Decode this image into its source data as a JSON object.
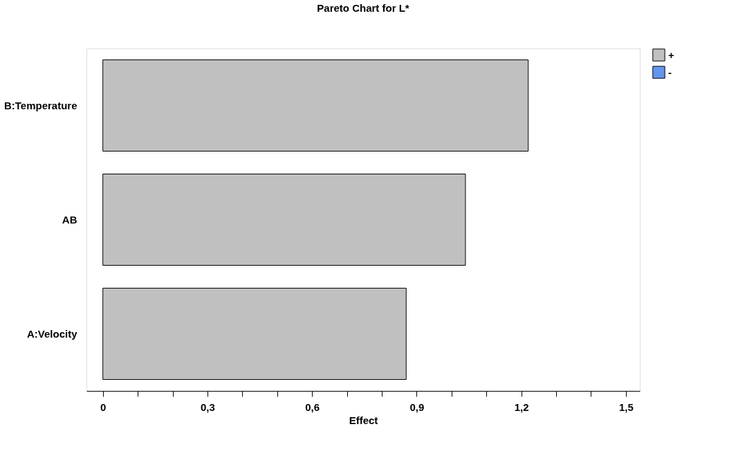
{
  "chart_data": {
    "type": "bar",
    "orientation": "horizontal",
    "title": "Pareto Chart for L*",
    "xlabel": "Effect",
    "categories": [
      "B:Temperature",
      "AB",
      "A:Velocity"
    ],
    "series": [
      {
        "name": "+",
        "color": "#c0c0c0",
        "values": [
          1.22,
          1.04,
          0.87
        ]
      },
      {
        "name": "-",
        "color": "#6495ed",
        "values": [
          null,
          null,
          null
        ]
      }
    ],
    "xlim": [
      -0.047,
      1.54
    ],
    "xticks": [
      0,
      {
        "value": 0.1,
        "label": null
      },
      {
        "value": 0.2,
        "label": null
      },
      {
        "value": 0.3,
        "label": "0,3"
      },
      {
        "value": 0.4,
        "label": null
      },
      {
        "value": 0.5,
        "label": null
      },
      {
        "value": 0.6,
        "label": "0,6"
      },
      {
        "value": 0.7,
        "label": null
      },
      {
        "value": 0.8,
        "label": null
      },
      {
        "value": 0.9,
        "label": "0,9"
      },
      {
        "value": 1.0,
        "label": null
      },
      {
        "value": 1.1,
        "label": null
      },
      {
        "value": 1.2,
        "label": "1,2"
      },
      {
        "value": 1.3,
        "label": null
      },
      {
        "value": 1.4,
        "label": null
      },
      {
        "value": 1.5,
        "label": "1,5"
      }
    ],
    "grid": false,
    "legend": "top right"
  }
}
